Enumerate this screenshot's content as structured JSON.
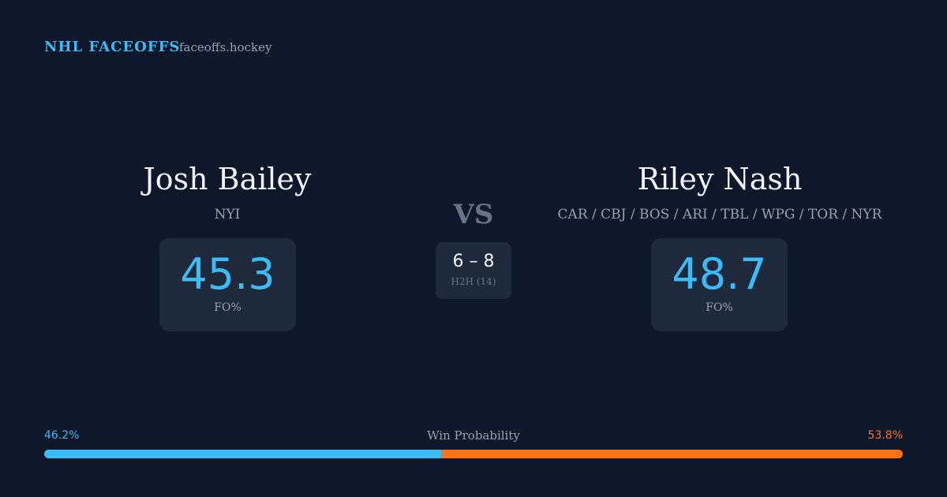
{
  "header": {
    "brand": "NHL FACEOFFS",
    "site": "faceoffs.hockey"
  },
  "players": [
    {
      "name": "Josh Bailey",
      "teams": "NYI",
      "fo_pct": 45.3,
      "fo_label": "FO%"
    },
    {
      "name": "Riley Nash",
      "teams": "CAR / CBJ / BOS / ARI / TBL / WPG / TOR / NYR",
      "fo_pct": 48.7,
      "fo_label": "FO%"
    }
  ],
  "versus": {
    "text": "VS",
    "h2h": "6 – 8",
    "h2h_label": "H2H (14)"
  },
  "win_probability": {
    "label": "Win Probability",
    "left": {
      "value": 46.2,
      "label": "46.2%",
      "color": "#38bdf8"
    },
    "right": {
      "value": 53.8,
      "label": "53.8%",
      "color": "#f97316"
    }
  }
}
